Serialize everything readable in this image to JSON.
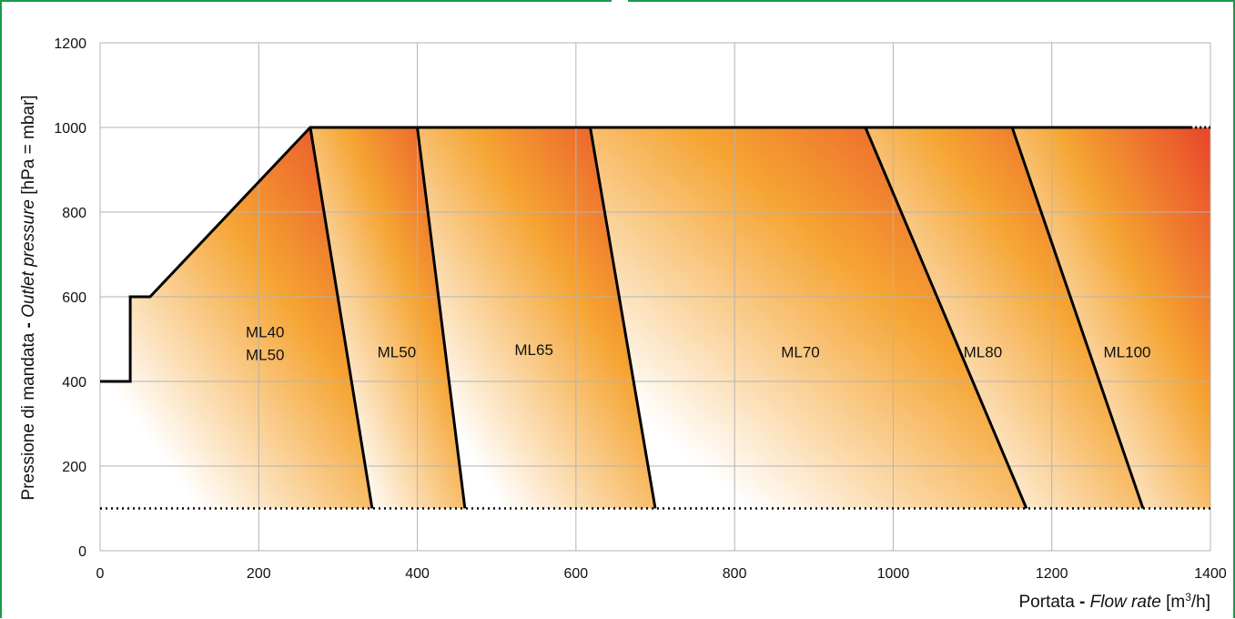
{
  "chart_data": {
    "type": "area",
    "xlabel": {
      "prefix": "Portata",
      "sep": " - ",
      "italic": "Flow rate",
      "unit_pre": " [m",
      "unit_sup": "3",
      "unit_post": "/h]"
    },
    "ylabel": {
      "prefix": "Pressione di mandata",
      "sep": " - ",
      "italic": "Outlet pressure",
      "unit": " [hPa = mbar]"
    },
    "xlim": [
      0,
      1400
    ],
    "ylim": [
      0,
      1200
    ],
    "x_ticks": [
      0,
      200,
      400,
      600,
      800,
      1000,
      1200,
      1400
    ],
    "y_ticks": [
      0,
      200,
      400,
      600,
      800,
      1000,
      1200
    ],
    "grid": true,
    "min_pressure_line": 100,
    "envelope": [
      [
        0,
        400
      ],
      [
        38,
        400
      ],
      [
        38,
        600
      ],
      [
        63,
        600
      ],
      [
        265,
        1000
      ],
      [
        1375,
        1000
      ]
    ],
    "envelope_dotted_end": [
      1375,
      1400
    ],
    "boundaries": [
      {
        "top": [
          265,
          1000
        ],
        "bottom": [
          343,
          100
        ]
      },
      {
        "top": [
          400,
          1000
        ],
        "bottom": [
          460,
          100
        ]
      },
      {
        "top": [
          618,
          1000
        ],
        "bottom": [
          700,
          100
        ]
      },
      {
        "top": [
          965,
          1000
        ],
        "bottom": [
          1168,
          100
        ]
      },
      {
        "top": [
          1150,
          1000
        ],
        "bottom": [
          1315,
          100
        ]
      }
    ],
    "regions": [
      {
        "label_lines": [
          "ML40",
          "ML50"
        ],
        "x": 208,
        "y": 490
      },
      {
        "label_lines": [
          "ML50"
        ],
        "x": 374,
        "y": 470
      },
      {
        "label_lines": [
          "ML65"
        ],
        "x": 547,
        "y": 475
      },
      {
        "label_lines": [
          "ML70"
        ],
        "x": 883,
        "y": 470
      },
      {
        "label_lines": [
          "ML80"
        ],
        "x": 1113,
        "y": 470
      },
      {
        "label_lines": [
          "ML100"
        ],
        "x": 1295,
        "y": 470
      }
    ]
  },
  "colors": {
    "frame": "#1a9a4a",
    "grid": "#b3b3b3",
    "line": "#000000",
    "gradient_hot": "#e8452a",
    "gradient_mid": "#f5a432",
    "gradient_cool": "#ffffff"
  }
}
